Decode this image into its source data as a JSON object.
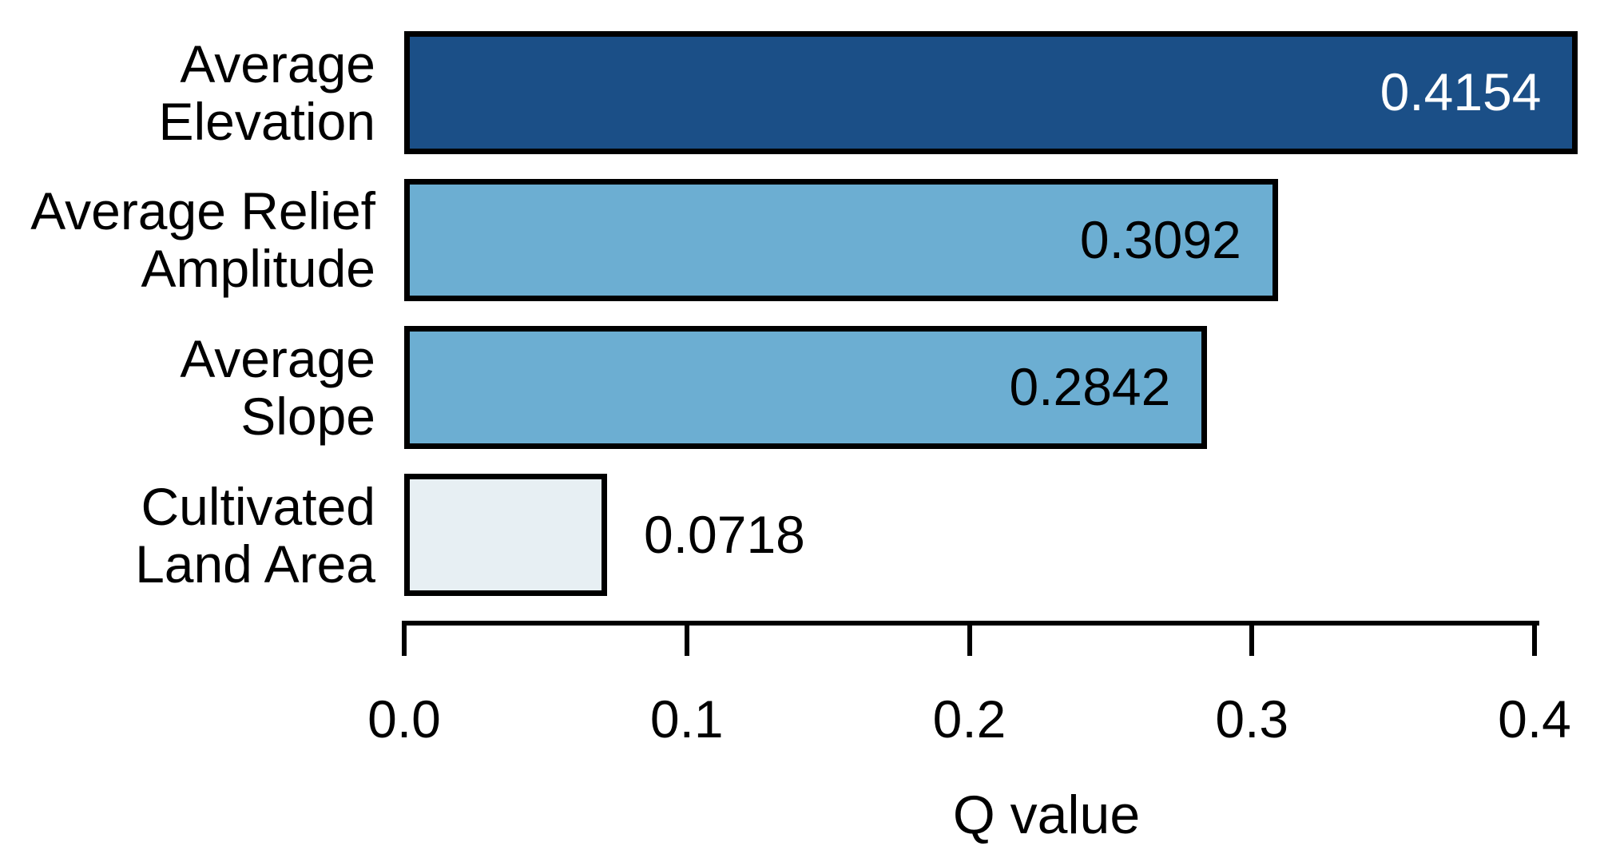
{
  "chart_data": {
    "type": "bar",
    "orientation": "horizontal",
    "categories": [
      [
        "Average",
        "Elevation"
      ],
      [
        "Average Relief",
        "Amplitude"
      ],
      [
        "Average",
        "Slope"
      ],
      [
        "Cultivated",
        "Land Area"
      ]
    ],
    "values": [
      0.4154,
      0.3092,
      0.2842,
      0.0718
    ],
    "value_labels": [
      "0.4154",
      "0.3092",
      "0.2842",
      "0.0718"
    ],
    "value_label_colors": [
      "#FFFFFF",
      "#000000",
      "#000000",
      "#000000"
    ],
    "value_label_positions": [
      "inside",
      "inside",
      "inside",
      "outside"
    ],
    "bar_colors": [
      "#1B4F87",
      "#6CAED2",
      "#6CAED2",
      "#E7EFF3"
    ],
    "bar_border_color": "#000000",
    "xlabel": "Q value",
    "x_ticks": [
      0.0,
      0.1,
      0.2,
      0.3,
      0.4
    ],
    "x_tick_labels": [
      "0.0",
      "0.1",
      "0.2",
      "0.3",
      "0.4"
    ],
    "xlim": [
      0,
      0.4
    ],
    "ylabel": "",
    "title": "",
    "grid": false,
    "legend": null
  }
}
